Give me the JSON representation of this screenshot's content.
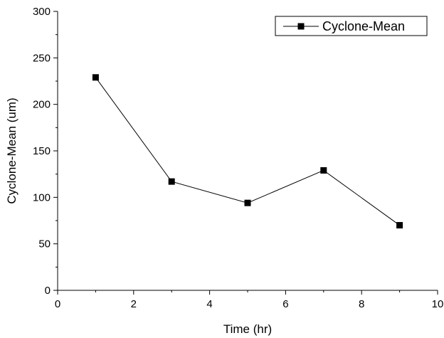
{
  "chart_data": {
    "type": "line",
    "title": "",
    "xlabel": "Time (hr)",
    "ylabel": "Cyclone-Mean (um)",
    "xlim": [
      0,
      10
    ],
    "ylim": [
      0,
      300
    ],
    "x_ticks": [
      0,
      2,
      4,
      6,
      8,
      10
    ],
    "x_tick_labels": [
      "0",
      "2",
      "4",
      "6",
      "8",
      "10"
    ],
    "y_ticks": [
      0,
      50,
      100,
      150,
      200,
      250,
      300
    ],
    "y_tick_labels": [
      "0",
      "50",
      "100",
      "150",
      "200",
      "250",
      "300"
    ],
    "grid": false,
    "legend_position": "top-right",
    "series": [
      {
        "name": "Cyclone-Mean",
        "color": "#000000",
        "marker": "square",
        "x": [
          1,
          3,
          5,
          7,
          9
        ],
        "y": [
          229,
          117,
          94,
          129,
          70
        ]
      }
    ]
  }
}
